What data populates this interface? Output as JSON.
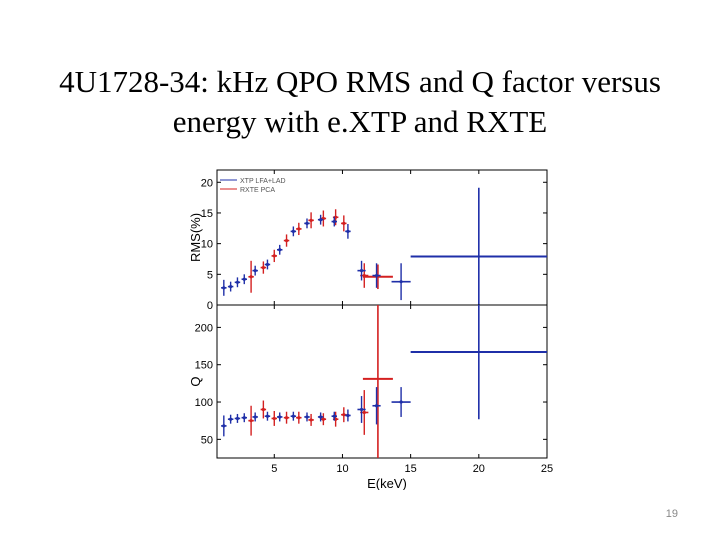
{
  "slide": {
    "title_line1": "4U1728-34: kHz QPO RMS and Q factor versus",
    "title_line2": "energy with e.XTP and RXTE",
    "page_number": "19"
  },
  "chart_data": [
    {
      "type": "scatter",
      "panel": "top",
      "ylabel": "RMS(%)",
      "xlabel": "",
      "ylim": [
        0,
        22
      ],
      "xlim": [
        0.8,
        25
      ],
      "yticks": [
        0,
        5,
        10,
        15,
        20
      ],
      "grid": false,
      "legend_position": "top-left",
      "series": [
        {
          "name": "XTP LFA+LAD",
          "color": "#1f2fa8",
          "points": [
            {
              "x": 1.3,
              "y": 2.8,
              "xerr": 0.2,
              "yerr": 1.3
            },
            {
              "x": 1.8,
              "y": 3.0,
              "xerr": 0.2,
              "yerr": 0.8
            },
            {
              "x": 2.3,
              "y": 3.7,
              "xerr": 0.2,
              "yerr": 0.8
            },
            {
              "x": 2.8,
              "y": 4.2,
              "xerr": 0.2,
              "yerr": 0.8
            },
            {
              "x": 3.6,
              "y": 5.6,
              "xerr": 0.2,
              "yerr": 0.8
            },
            {
              "x": 4.5,
              "y": 6.6,
              "xerr": 0.2,
              "yerr": 0.8
            },
            {
              "x": 5.4,
              "y": 9.0,
              "xerr": 0.2,
              "yerr": 0.8
            },
            {
              "x": 6.4,
              "y": 12.0,
              "xerr": 0.2,
              "yerr": 0.8
            },
            {
              "x": 7.4,
              "y": 13.3,
              "xerr": 0.2,
              "yerr": 0.8
            },
            {
              "x": 8.4,
              "y": 13.9,
              "xerr": 0.2,
              "yerr": 0.8
            },
            {
              "x": 9.4,
              "y": 13.6,
              "xerr": 0.2,
              "yerr": 0.8
            },
            {
              "x": 10.4,
              "y": 12.0,
              "xerr": 0.2,
              "yerr": 1.2
            },
            {
              "x": 11.4,
              "y": 5.6,
              "xerr": 0.3,
              "yerr": 1.6
            },
            {
              "x": 12.5,
              "y": 4.8,
              "xerr": 0.3,
              "yerr": 2.0
            },
            {
              "x": 14.3,
              "y": 3.8,
              "xerr": 0.7,
              "yerr": 3.0
            },
            {
              "x": 20.0,
              "y": 7.9,
              "xerr": 5.0,
              "yerr": 11.2
            }
          ]
        },
        {
          "name": "RXTE PCA",
          "color": "#d42020",
          "points": [
            {
              "x": 3.3,
              "y": 4.6,
              "xerr": 0.2,
              "yerr": 2.6
            },
            {
              "x": 4.2,
              "y": 6.1,
              "xerr": 0.2,
              "yerr": 1.0
            },
            {
              "x": 5.0,
              "y": 8.0,
              "xerr": 0.2,
              "yerr": 1.0
            },
            {
              "x": 5.9,
              "y": 10.5,
              "xerr": 0.2,
              "yerr": 1.0
            },
            {
              "x": 6.8,
              "y": 12.4,
              "xerr": 0.2,
              "yerr": 1.0
            },
            {
              "x": 7.7,
              "y": 13.8,
              "xerr": 0.2,
              "yerr": 1.3
            },
            {
              "x": 8.6,
              "y": 14.1,
              "xerr": 0.2,
              "yerr": 1.3
            },
            {
              "x": 9.5,
              "y": 14.3,
              "xerr": 0.2,
              "yerr": 1.3
            },
            {
              "x": 10.1,
              "y": 13.3,
              "xerr": 0.2,
              "yerr": 1.3
            },
            {
              "x": 11.6,
              "y": 4.8,
              "xerr": 0.3,
              "yerr": 2.0
            },
            {
              "x": 12.6,
              "y": 4.6,
              "xerr": 1.1,
              "yerr": 2.0
            }
          ]
        }
      ]
    },
    {
      "type": "scatter",
      "panel": "bottom",
      "ylabel": "Q",
      "xlabel": "E(keV)",
      "ylim": [
        25,
        230
      ],
      "xlim": [
        0.8,
        25
      ],
      "xticks": [
        5,
        10,
        15,
        20,
        25
      ],
      "yticks": [
        50,
        100,
        150,
        200
      ],
      "grid": false,
      "series": [
        {
          "name": "XTP LFA+LAD",
          "color": "#1f2fa8",
          "points": [
            {
              "x": 1.3,
              "y": 68,
              "xerr": 0.2,
              "yerr": 14
            },
            {
              "x": 1.8,
              "y": 77,
              "xerr": 0.2,
              "yerr": 6
            },
            {
              "x": 2.3,
              "y": 78,
              "xerr": 0.2,
              "yerr": 6
            },
            {
              "x": 2.8,
              "y": 79,
              "xerr": 0.2,
              "yerr": 6
            },
            {
              "x": 3.6,
              "y": 80,
              "xerr": 0.2,
              "yerr": 6
            },
            {
              "x": 4.5,
              "y": 81,
              "xerr": 0.2,
              "yerr": 6
            },
            {
              "x": 5.4,
              "y": 80,
              "xerr": 0.2,
              "yerr": 6
            },
            {
              "x": 6.4,
              "y": 81,
              "xerr": 0.2,
              "yerr": 6
            },
            {
              "x": 7.4,
              "y": 80,
              "xerr": 0.2,
              "yerr": 6
            },
            {
              "x": 8.4,
              "y": 80,
              "xerr": 0.2,
              "yerr": 6
            },
            {
              "x": 9.4,
              "y": 81,
              "xerr": 0.2,
              "yerr": 6
            },
            {
              "x": 10.4,
              "y": 82,
              "xerr": 0.2,
              "yerr": 8
            },
            {
              "x": 11.4,
              "y": 90,
              "xerr": 0.3,
              "yerr": 18
            },
            {
              "x": 12.5,
              "y": 95,
              "xerr": 0.3,
              "yerr": 25
            },
            {
              "x": 14.3,
              "y": 100,
              "xerr": 0.7,
              "yerr": 20
            },
            {
              "x": 20.0,
              "y": 167,
              "xerr": 5.0,
              "yerr": 90
            }
          ]
        },
        {
          "name": "RXTE PCA",
          "color": "#d42020",
          "points": [
            {
              "x": 3.3,
              "y": 75,
              "xerr": 0.2,
              "yerr": 20
            },
            {
              "x": 4.2,
              "y": 90,
              "xerr": 0.2,
              "yerr": 12
            },
            {
              "x": 5.0,
              "y": 78,
              "xerr": 0.2,
              "yerr": 10
            },
            {
              "x": 5.9,
              "y": 79,
              "xerr": 0.2,
              "yerr": 8
            },
            {
              "x": 6.8,
              "y": 79,
              "xerr": 0.2,
              "yerr": 8
            },
            {
              "x": 7.7,
              "y": 76,
              "xerr": 0.2,
              "yerr": 8
            },
            {
              "x": 8.6,
              "y": 77,
              "xerr": 0.2,
              "yerr": 8
            },
            {
              "x": 9.5,
              "y": 77,
              "xerr": 0.2,
              "yerr": 10
            },
            {
              "x": 10.1,
              "y": 83,
              "xerr": 0.2,
              "yerr": 10
            },
            {
              "x": 11.6,
              "y": 86,
              "xerr": 0.3,
              "yerr": 30
            },
            {
              "x": 12.6,
              "y": 131,
              "xerr": 1.1,
              "yerr": 112
            }
          ]
        }
      ]
    }
  ]
}
